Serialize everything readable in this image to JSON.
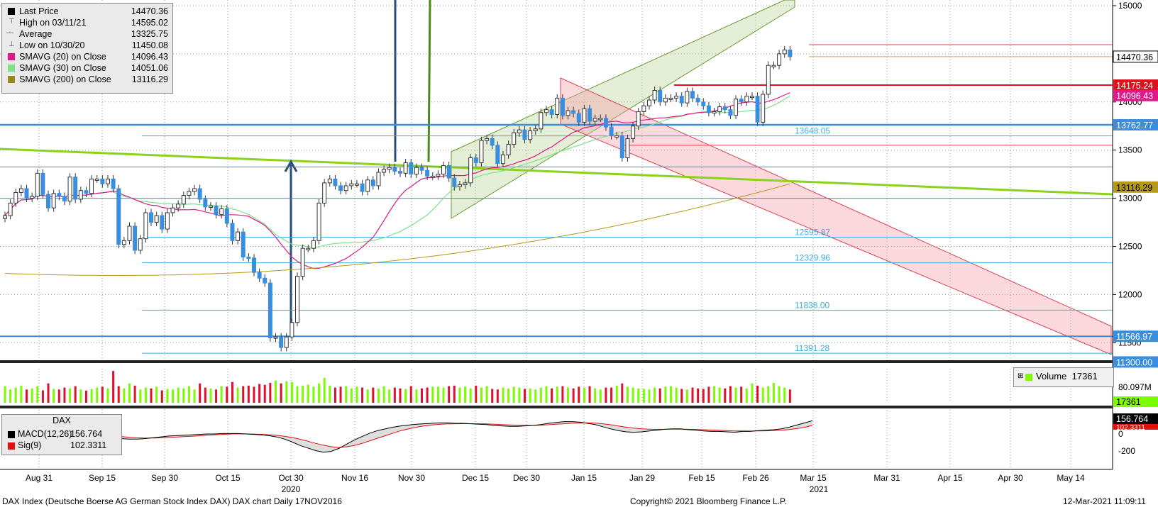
{
  "legend": {
    "items": [
      {
        "label": "Last Price",
        "value": "14470.36",
        "color": "#000000",
        "icon": "square-icon"
      },
      {
        "label": "High on 03/11/21",
        "value": "14595.02",
        "color": "#555555",
        "icon": "high-marker-icon"
      },
      {
        "label": "Average",
        "value": "13325.75",
        "color": "#555555",
        "icon": "average-line-icon"
      },
      {
        "label": "Low on 10/30/20",
        "value": "11450.08",
        "color": "#555555",
        "icon": "low-marker-icon"
      },
      {
        "label": "SMAVG (20)  on Close",
        "value": "14096.43",
        "color": "#e0188a",
        "icon": "square-icon"
      },
      {
        "label": "SMAVG (30)  on Close",
        "value": "14051.06",
        "color": "#7fe08a",
        "icon": "square-icon"
      },
      {
        "label": "SMAVG (200)  on Close",
        "value": "13116.29",
        "color": "#9a8c20",
        "icon": "square-icon"
      }
    ]
  },
  "price_tags": [
    {
      "value": "14470.36",
      "price": 14470.36,
      "bg": "#ffffff",
      "fg": "#000000"
    },
    {
      "value": "14175.24",
      "price": 14175.24,
      "bg": "#e0101c",
      "fg": "#ffffff"
    },
    {
      "value": "14096.43",
      "price": 14096.43,
      "bg": "#e0188a",
      "fg": "#ffffff"
    },
    {
      "value": "13762.77",
      "price": 13762.77,
      "bg": "#3a8ee0",
      "fg": "#ffffff"
    },
    {
      "value": "13116.29",
      "price": 13116.29,
      "bg": "#b59a18",
      "fg": "#000000"
    },
    {
      "value": "11566.97",
      "price": 11566.97,
      "bg": "#3a8ee0",
      "fg": "#ffffff"
    },
    {
      "value": "11300.00",
      "price": 11300.0,
      "bg": "#3a8ee0",
      "fg": "#ffffff"
    }
  ],
  "fib_labels": [
    {
      "text": "13648.05",
      "price": 13648.05
    },
    {
      "text": "12595.87",
      "price": 12595.87
    },
    {
      "text": "12329.96",
      "price": 12329.96
    },
    {
      "text": "11838.00",
      "price": 11838.0
    },
    {
      "text": "11391.28",
      "price": 11391.28
    }
  ],
  "volume_legend": {
    "label": "Volume",
    "value": "17361",
    "axis_label": "80.097M",
    "last_tag": "17361"
  },
  "macd_legend": {
    "title": "DAX",
    "items": [
      {
        "label": "MACD(12,26)",
        "value": "156.764",
        "color": "#000000"
      },
      {
        "label": "Sig(9)",
        "value": "102.3311",
        "color": "#e01010"
      }
    ],
    "tags": [
      "156.764",
      "102.3311"
    ]
  },
  "footer": {
    "left": "DAX Index (Deutsche Boerse AG German Stock Index DAX) DAX chart  Daily 17NOV2016",
    "center": "Copyright© 2021 Bloomberg Finance L.P.",
    "right": "12-Mar-2021 11:09:11"
  },
  "chart_data": [
    {
      "type": "candlestick",
      "title": "",
      "y_ticks": [
        15000,
        14500,
        14000,
        13500,
        13000,
        12500,
        12000,
        11500
      ],
      "ylim": [
        11300,
        15000
      ],
      "x_tick_labels": [
        "Aug 31",
        "Sep 15",
        "Sep 30",
        "Oct 15",
        "Oct 30",
        "Nov 16",
        "Nov 30",
        "Dec 15",
        "Dec 30",
        "Jan 15",
        "Jan 29",
        "Feb 15",
        "Feb 26",
        "Mar 15",
        "Mar 31",
        "Apr 15",
        "Apr 30",
        "May 14"
      ],
      "year_labels": [
        "2020",
        "2021"
      ],
      "close": [
        12820,
        12950,
        13060,
        13100,
        13000,
        13020,
        13260,
        13040,
        12900,
        13050,
        13020,
        12970,
        13220,
        12990,
        13080,
        13050,
        13200,
        13200,
        13150,
        13200,
        13100,
        12520,
        12560,
        12710,
        12460,
        12580,
        12850,
        12750,
        12820,
        12680,
        12850,
        12900,
        12940,
        13030,
        13070,
        13100,
        12990,
        12910,
        12920,
        12830,
        12890,
        12740,
        12560,
        12650,
        12390,
        12380,
        12230,
        12170,
        12120,
        11550,
        11560,
        11450,
        11560,
        11710,
        12190,
        12480,
        12480,
        12560,
        12950,
        13160,
        13200,
        13130,
        13080,
        13130,
        13150,
        13150,
        13070,
        13190,
        13130,
        13270,
        13300,
        13320,
        13280,
        13260,
        13370,
        13250,
        13320,
        13290,
        13230,
        13230,
        13250,
        13340,
        13210,
        13120,
        13140,
        13160,
        13420,
        13370,
        13600,
        13620,
        13550,
        13360,
        13450,
        13560,
        13680,
        13710,
        13610,
        13700,
        13720,
        13890,
        13920,
        13870,
        14040,
        13860,
        13910,
        13880,
        13790,
        13930,
        13800,
        13830,
        13830,
        13740,
        13650,
        13650,
        13420,
        13620,
        13750,
        13900,
        13960,
        14020,
        14120,
        14000,
        14040,
        14040,
        14060,
        13990,
        14110,
        14040,
        14000,
        13960,
        13890,
        13900,
        13950,
        13920,
        13860,
        14030,
        14000,
        14060,
        14060,
        13790,
        14080,
        14380,
        14380,
        14500,
        14540,
        14470
      ],
      "series": [
        {
          "name": "SMAVG (20)  on Close",
          "last": 14096.43
        },
        {
          "name": "SMAVG (30)  on Close",
          "last": 14051.06
        },
        {
          "name": "SMAVG (200)  on Close",
          "last": 13116.29
        }
      ],
      "horizontal_levels": [
        14595.02,
        14470.36,
        14175.24,
        13762.77,
        13648.05,
        13325.75,
        13000,
        12595.87,
        12329.96,
        11838.0,
        11566.97,
        11391.28
      ]
    },
    {
      "type": "bar",
      "title": "Volume",
      "ylim": [
        0,
        160
      ],
      "y_ticks_labels": [
        "80.097M"
      ],
      "values": [
        60,
        48,
        55,
        62,
        48,
        52,
        60,
        45,
        70,
        50,
        48,
        55,
        52,
        60,
        48,
        44,
        50,
        55,
        58,
        52,
        115,
        60,
        52,
        70,
        62,
        48,
        55,
        52,
        58,
        45,
        50,
        48,
        55,
        52,
        60,
        48,
        70,
        55,
        52,
        48,
        60,
        58,
        75,
        55,
        60,
        62,
        58,
        68,
        65,
        72,
        80,
        70,
        78,
        75,
        60,
        62,
        65,
        58,
        70,
        90,
        62,
        55,
        58,
        60,
        52,
        58,
        55,
        48,
        55,
        52,
        60,
        48,
        55,
        52,
        50,
        60,
        48,
        52,
        55,
        58,
        58,
        55,
        60,
        62,
        55,
        58,
        52,
        62,
        55,
        60,
        50,
        48,
        55,
        52,
        58,
        55,
        50,
        52,
        48,
        55,
        60,
        52,
        58,
        60,
        55,
        52,
        58,
        55,
        60,
        52,
        48,
        55,
        55,
        62,
        70,
        58,
        55,
        52,
        50,
        48,
        55,
        52,
        58,
        60,
        55,
        50,
        48,
        55,
        52,
        50,
        58,
        60,
        55,
        52,
        60,
        55,
        58,
        52,
        70,
        62,
        55,
        60,
        72,
        60,
        55,
        48
      ],
      "up_color": "#7cfc00",
      "down_color": "#e0102c"
    },
    {
      "type": "line",
      "title": "DAX",
      "y_ticks": [
        0,
        -200
      ],
      "ylim": [
        -300,
        300
      ],
      "series": [
        {
          "name": "MACD(12,26)",
          "last": 156.764
        },
        {
          "name": "Sig(9)",
          "last": 102.3311
        }
      ],
      "macd": [
        5,
        10,
        20,
        28,
        25,
        25,
        30,
        22,
        12,
        8,
        5,
        -5,
        -20,
        -35,
        -45,
        -55,
        -60,
        -60,
        -55,
        -45,
        -35,
        -25,
        -20,
        -15,
        -10,
        -5,
        0,
        0,
        5,
        5,
        5,
        0,
        -5,
        -10,
        -20,
        -35,
        -60,
        -95,
        -135,
        -165,
        -195,
        -215,
        -205,
        -170,
        -120,
        -70,
        -30,
        10,
        40,
        60,
        80,
        95,
        105,
        115,
        120,
        125,
        130,
        130,
        125,
        125,
        120,
        115,
        110,
        100,
        95,
        90,
        90,
        95,
        100,
        110,
        125,
        135,
        145,
        145,
        140,
        125,
        110,
        85,
        60,
        40,
        25,
        20,
        25,
        35,
        45,
        55,
        60,
        60,
        50,
        45,
        35,
        30,
        30,
        25,
        20,
        30,
        30,
        40,
        45,
        50,
        60,
        80,
        105,
        130,
        157
      ],
      "signal": [
        5,
        8,
        12,
        16,
        18,
        20,
        22,
        22,
        20,
        16,
        12,
        6,
        -2,
        -10,
        -20,
        -30,
        -38,
        -45,
        -48,
        -48,
        -46,
        -42,
        -37,
        -32,
        -27,
        -22,
        -15,
        -10,
        -5,
        -1,
        2,
        1,
        -1,
        -4,
        -9,
        -16,
        -27,
        -42,
        -62,
        -85,
        -110,
        -132,
        -150,
        -158,
        -150,
        -135,
        -110,
        -80,
        -50,
        -20,
        10,
        40,
        60,
        80,
        95,
        105,
        113,
        118,
        120,
        121,
        121,
        120,
        118,
        114,
        110,
        106,
        103,
        101,
        101,
        103,
        108,
        114,
        120,
        126,
        129,
        130,
        128,
        120,
        108,
        94,
        80,
        68,
        60,
        56,
        54,
        55,
        56,
        57,
        55,
        53,
        50,
        46,
        43,
        40,
        36,
        35,
        34,
        35,
        37,
        40,
        44,
        52,
        63,
        78,
        102
      ]
    }
  ]
}
